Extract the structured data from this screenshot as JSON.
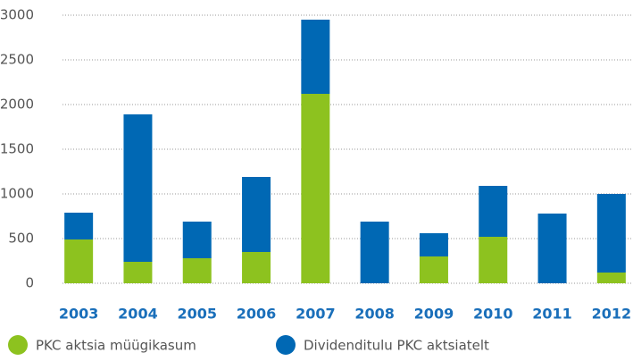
{
  "chart_data": {
    "type": "stacked_bar",
    "categories": [
      "2003",
      "2004",
      "2005",
      "2006",
      "2007",
      "2008",
      "2009",
      "2010",
      "2011",
      "2012"
    ],
    "series": [
      {
        "name": "PKC aktsia müügikasum",
        "color": "#8dc21f",
        "values": [
          490,
          240,
          280,
          350,
          2120,
          0,
          300,
          520,
          0,
          120
        ]
      },
      {
        "name": "Dividenditulu PKC aktsiatelt",
        "color": "#0068b4",
        "values": [
          300,
          1650,
          410,
          840,
          830,
          690,
          260,
          570,
          780,
          880
        ]
      }
    ],
    "ylim": [
      0,
      3000
    ],
    "yticks": [
      0,
      500,
      1000,
      1500,
      2000,
      2500,
      3000
    ],
    "grid": true,
    "legend": "bottom"
  }
}
